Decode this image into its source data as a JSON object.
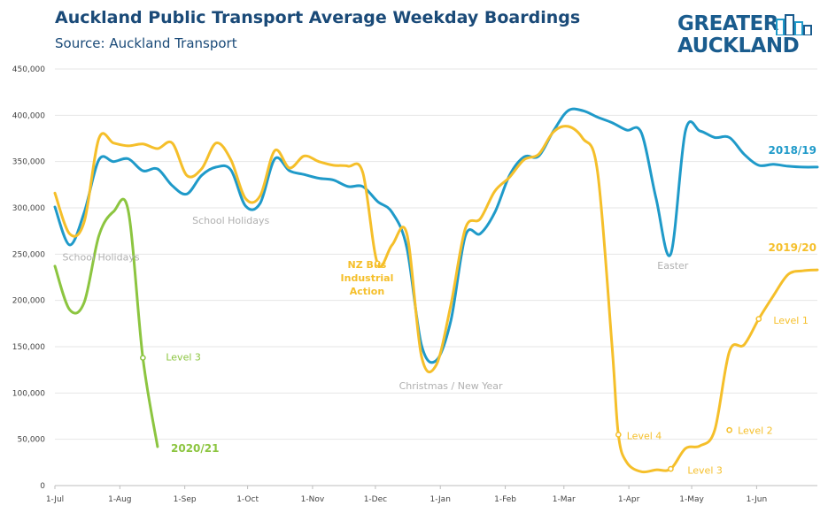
{
  "title": "Auckland Public Transport Average Weekday Boardings",
  "subtitle": "Source: Auckland Transport",
  "logo": {
    "line1": "GREATER",
    "line2": "AUCKLAND"
  },
  "chart_data": {
    "type": "line",
    "x_start": "2000-07-01",
    "x_end": "2001-06-30",
    "xticks": [
      "1-Jul",
      "1-Aug",
      "1-Sep",
      "1-Oct",
      "1-Nov",
      "1-Dec",
      "1-Jan",
      "1-Feb",
      "1-Mar",
      "1-Apr",
      "1-May",
      "1-Jun"
    ],
    "xtick_dates": [
      "2000-07-01",
      "2000-08-01",
      "2000-09-01",
      "2000-10-01",
      "2000-11-01",
      "2000-12-01",
      "2001-01-01",
      "2001-02-01",
      "2001-03-01",
      "2001-04-01",
      "2001-05-01",
      "2001-06-01"
    ],
    "yticks": [
      "0",
      "50,000",
      "100,000",
      "150,000",
      "200,000",
      "250,000",
      "300,000",
      "350,000",
      "400,000",
      "450,000"
    ],
    "ylim": [
      0,
      450000
    ],
    "grid": true,
    "series": [
      {
        "name": "2018/19",
        "color": "#1f9ac9",
        "x": [
          "2000-07-01",
          "2000-07-08",
          "2000-07-15",
          "2000-07-22",
          "2000-07-29",
          "2000-08-05",
          "2000-08-12",
          "2000-08-19",
          "2000-08-26",
          "2000-09-02",
          "2000-09-09",
          "2000-09-16",
          "2000-09-23",
          "2000-09-30",
          "2000-10-07",
          "2000-10-14",
          "2000-10-21",
          "2000-10-28",
          "2000-11-04",
          "2000-11-11",
          "2000-11-18",
          "2000-11-25",
          "2000-12-02",
          "2000-12-09",
          "2000-12-16",
          "2000-12-23",
          "2000-12-30",
          "2001-01-06",
          "2001-01-13",
          "2001-01-20",
          "2001-01-27",
          "2001-02-03",
          "2001-02-10",
          "2001-02-17",
          "2001-02-24",
          "2001-03-03",
          "2001-03-10",
          "2001-03-17",
          "2001-03-24",
          "2001-03-31",
          "2001-04-07",
          "2001-04-14",
          "2001-04-21",
          "2001-04-28",
          "2001-05-05",
          "2001-05-12",
          "2001-05-19",
          "2001-05-26",
          "2001-06-02",
          "2001-06-09",
          "2001-06-16",
          "2001-06-23",
          "2001-06-30"
        ],
        "values": [
          301000,
          260000,
          295000,
          352000,
          350000,
          353000,
          340000,
          342000,
          324000,
          315000,
          335000,
          344000,
          341000,
          302000,
          305000,
          353000,
          340000,
          336000,
          332000,
          330000,
          323000,
          323000,
          307000,
          295000,
          257000,
          152000,
          135000,
          178000,
          270000,
          272000,
          295000,
          335000,
          355000,
          356000,
          383000,
          405000,
          405000,
          398000,
          392000,
          384000,
          381000,
          310000,
          250000,
          383000,
          383000,
          376000,
          376000,
          358000,
          346000,
          347000,
          345000,
          344000,
          344000
        ]
      },
      {
        "name": "2019/20",
        "color": "#f5bf2a",
        "x": [
          "2000-07-01",
          "2000-07-08",
          "2000-07-15",
          "2000-07-22",
          "2000-07-29",
          "2000-08-05",
          "2000-08-12",
          "2000-08-19",
          "2000-08-26",
          "2000-09-02",
          "2000-09-09",
          "2000-09-16",
          "2000-09-23",
          "2000-09-30",
          "2000-10-07",
          "2000-10-14",
          "2000-10-21",
          "2000-10-28",
          "2000-11-04",
          "2000-11-11",
          "2000-11-18",
          "2000-11-25",
          "2000-12-02",
          "2000-12-09",
          "2000-12-16",
          "2000-12-23",
          "2000-12-30",
          "2001-01-06",
          "2001-01-13",
          "2001-01-20",
          "2001-01-27",
          "2001-02-03",
          "2001-02-10",
          "2001-02-17",
          "2001-02-24",
          "2001-03-03",
          "2001-03-10",
          "2001-03-17",
          "2001-03-24",
          "2001-03-27",
          "2001-03-31",
          "2001-04-07",
          "2001-04-14",
          "2001-04-21",
          "2001-04-28",
          "2001-05-05",
          "2001-05-12",
          "2001-05-19",
          "2001-05-26",
          "2001-06-02",
          "2001-06-09",
          "2001-06-16",
          "2001-06-23",
          "2001-06-30"
        ],
        "values": [
          316000,
          272000,
          285000,
          375000,
          370000,
          367000,
          369000,
          364000,
          370000,
          335000,
          342000,
          370000,
          352000,
          310000,
          313000,
          362000,
          343000,
          356000,
          350000,
          346000,
          345000,
          338000,
          240000,
          260000,
          272000,
          140000,
          130000,
          195000,
          278000,
          288000,
          318000,
          333000,
          352000,
          358000,
          382000,
          388000,
          375000,
          340000,
          150000,
          55000,
          25000,
          15000,
          17000,
          18000,
          40000,
          43000,
          60000,
          145000,
          152000,
          180000,
          205000,
          228000,
          232000,
          233000
        ]
      },
      {
        "name": "2020/21",
        "color": "#8cc540",
        "x": [
          "2000-07-01",
          "2000-07-08",
          "2000-07-15",
          "2000-07-22",
          "2000-07-29",
          "2000-08-05",
          "2000-08-12",
          "2000-08-19"
        ],
        "values": [
          237000,
          190000,
          198000,
          270000,
          296000,
          297000,
          138000,
          42000
        ]
      }
    ],
    "series_labels": [
      {
        "text": "2018/19",
        "color": "#1f9ac9"
      },
      {
        "text": "2019/20",
        "color": "#f5bf2a"
      },
      {
        "text": "2020/21",
        "color": "#8cc540"
      }
    ],
    "annotations": [
      {
        "text": "School Holidays",
        "x": "2000-07-23",
        "y": 243000,
        "color": "#b0b0b0",
        "anchor": "middle",
        "lines": [
          "School Holidays"
        ]
      },
      {
        "text": "School Holidays",
        "x": "2000-09-23",
        "y": 283000,
        "color": "#b0b0b0",
        "anchor": "middle",
        "lines": [
          "School Holidays"
        ]
      },
      {
        "text": "NZ Bus Industrial Action",
        "x": "2000-11-27",
        "y": 235000,
        "color": "#f5bf2a",
        "anchor": "middle",
        "lines": [
          "NZ Bus",
          "Industrial",
          "Action"
        ]
      },
      {
        "text": "Christmas / New Year",
        "x": "2001-01-06",
        "y": 104000,
        "color": "#b0b0b0",
        "anchor": "middle",
        "lines": [
          "Christmas / New Year"
        ]
      },
      {
        "text": "Easter",
        "x": "2001-04-22",
        "y": 234000,
        "color": "#b0b0b0",
        "anchor": "middle",
        "lines": [
          "Easter"
        ]
      },
      {
        "text": "Level 3",
        "x": "2000-08-23",
        "y": 135000,
        "color": "#8cc540",
        "anchor": "start",
        "lines": [
          "Level 3"
        ]
      },
      {
        "text": "Level 4",
        "x": "2001-03-31",
        "y": 50000,
        "color": "#f5bf2a",
        "anchor": "start",
        "lines": [
          "Level 4"
        ]
      },
      {
        "text": "Level 3",
        "x": "2001-04-29",
        "y": 13000,
        "color": "#f5bf2a",
        "anchor": "start",
        "lines": [
          "Level 3"
        ]
      },
      {
        "text": "Level 2",
        "x": "2001-05-23",
        "y": 56000,
        "color": "#f5bf2a",
        "anchor": "start",
        "lines": [
          "Level 2"
        ]
      },
      {
        "text": "Level 1",
        "x": "2001-06-09",
        "y": 175000,
        "color": "#f5bf2a",
        "anchor": "start",
        "lines": [
          "Level 1"
        ]
      }
    ],
    "markers": [
      {
        "series": "2020/21",
        "x": "2000-08-12",
        "y": 138000
      },
      {
        "series": "2019/20",
        "x": "2001-03-27",
        "y": 55000
      },
      {
        "series": "2019/20",
        "x": "2001-04-21",
        "y": 18000
      },
      {
        "series": "2019/20",
        "x": "2001-05-19",
        "y": 60000
      },
      {
        "series": "2019/20",
        "x": "2001-06-02",
        "y": 180000
      },
      {
        "series": "2019/20",
        "x": "2000-12-02",
        "y": 240000
      }
    ]
  }
}
